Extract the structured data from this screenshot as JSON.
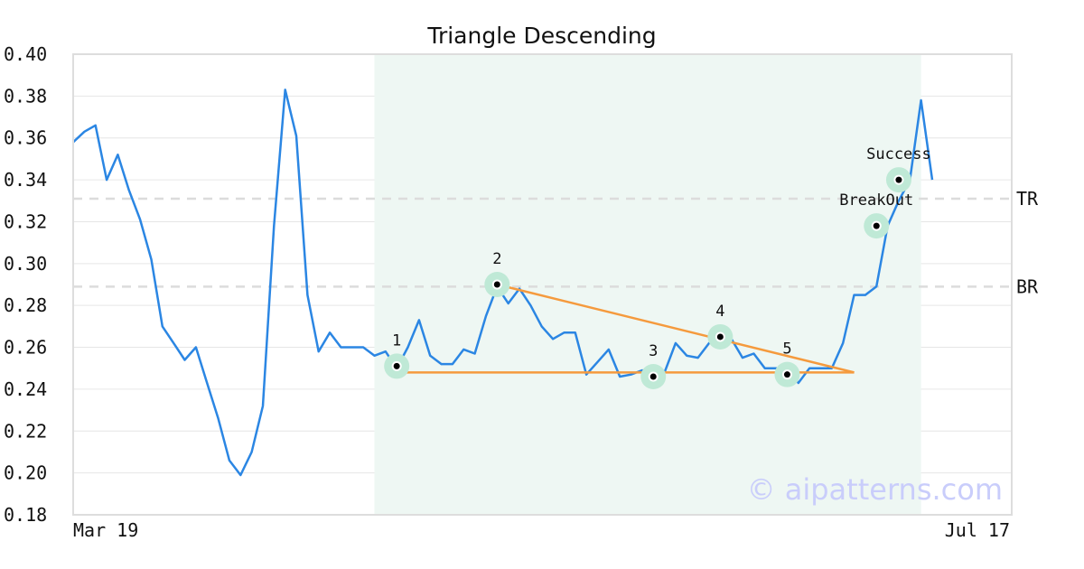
{
  "chart_data": {
    "type": "line",
    "title": "Triangle Descending",
    "xlabel": "",
    "ylabel": "",
    "x_range": [
      "Mar 19",
      "Jul 17"
    ],
    "x_tick_labels": [
      "Mar 19",
      "Jul 17"
    ],
    "ylim": [
      0.18,
      0.4
    ],
    "y_ticks": [
      "0.18",
      "0.20",
      "0.22",
      "0.24",
      "0.26",
      "0.28",
      "0.30",
      "0.32",
      "0.34",
      "0.36",
      "0.38",
      "0.40"
    ],
    "grid": true,
    "series": [
      {
        "color": "#2b86e3",
        "values": [
          0.358,
          0.363,
          0.366,
          0.34,
          0.352,
          0.335,
          0.321,
          0.302,
          0.27,
          0.262,
          0.254,
          0.26,
          0.243,
          0.226,
          0.206,
          0.199,
          0.21,
          0.232,
          0.318,
          0.383,
          0.361,
          0.285,
          0.258,
          0.267,
          0.26,
          0.26,
          0.26,
          0.256,
          0.258,
          0.25,
          0.26,
          0.273,
          0.256,
          0.252,
          0.252,
          0.259,
          0.257,
          0.275,
          0.289,
          0.281,
          0.288,
          0.28,
          0.27,
          0.264,
          0.267,
          0.267,
          0.247,
          0.253,
          0.259,
          0.246,
          0.247,
          0.249,
          0.246,
          0.248,
          0.262,
          0.256,
          0.255,
          0.262,
          0.266,
          0.264,
          0.255,
          0.257,
          0.25,
          0.25,
          0.25,
          0.243,
          0.25,
          0.25,
          0.25,
          0.262,
          0.285,
          0.285,
          0.289,
          0.318,
          0.33,
          0.34,
          0.378,
          0.34
        ]
      }
    ],
    "pattern_region": {
      "start_index": 27,
      "end_index": 76,
      "color": "#eef7f3"
    },
    "markers": [
      {
        "label": "1",
        "index": 29,
        "y": 0.251
      },
      {
        "label": "2",
        "index": 38,
        "y": 0.29
      },
      {
        "label": "3",
        "index": 52,
        "y": 0.246
      },
      {
        "label": "4",
        "index": 58,
        "y": 0.265
      },
      {
        "label": "5",
        "index": 64,
        "y": 0.247
      },
      {
        "label": "BreakOut",
        "index": 72,
        "y": 0.318
      },
      {
        "label": "Success",
        "index": 74,
        "y": 0.34
      }
    ],
    "reference_lines": [
      {
        "label": "TR",
        "y": 0.331
      },
      {
        "label": "BR",
        "y": 0.289
      }
    ],
    "trendlines": [
      {
        "from": {
          "index": 38,
          "y": 0.29
        },
        "to": {
          "index": 70,
          "y": 0.248
        }
      },
      {
        "from": {
          "index": 29,
          "y": 0.248
        },
        "to": {
          "index": 70,
          "y": 0.248
        }
      }
    ],
    "trendline_color": "#f59a3d",
    "marker_ring_color": "#bfe9d6",
    "watermark": "© aipatterns.com"
  }
}
